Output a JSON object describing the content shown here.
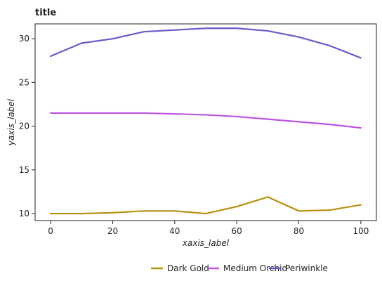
{
  "chart_data": {
    "type": "line",
    "title": "title",
    "xlabel": "xaxis_label",
    "ylabel": "yaxis_label",
    "x": [
      0,
      10,
      20,
      30,
      40,
      50,
      60,
      70,
      80,
      90,
      100
    ],
    "xticks": [
      0,
      20,
      40,
      60,
      80,
      100
    ],
    "yticks": [
      10,
      15,
      20,
      25,
      30
    ],
    "xlim": [
      -5,
      105
    ],
    "ylim": [
      9.2,
      31.7
    ],
    "grid": false,
    "legend_position": "bottom",
    "series": [
      {
        "name": "Dark Gold",
        "color": "#b8900f",
        "values": [
          10.0,
          10.0,
          10.1,
          10.3,
          10.3,
          10.0,
          10.8,
          11.9,
          10.3,
          10.4,
          11.0
        ]
      },
      {
        "name": "Medium Orchid",
        "color": "#bb55dd",
        "values": [
          21.5,
          21.5,
          21.5,
          21.5,
          21.4,
          21.3,
          21.1,
          20.8,
          20.5,
          20.2,
          19.8
        ]
      },
      {
        "name": "Periwinkle",
        "color": "#6a5acd",
        "values": [
          28.0,
          29.5,
          30.0,
          30.8,
          31.0,
          31.2,
          31.2,
          30.9,
          30.2,
          29.2,
          27.8
        ]
      }
    ]
  }
}
